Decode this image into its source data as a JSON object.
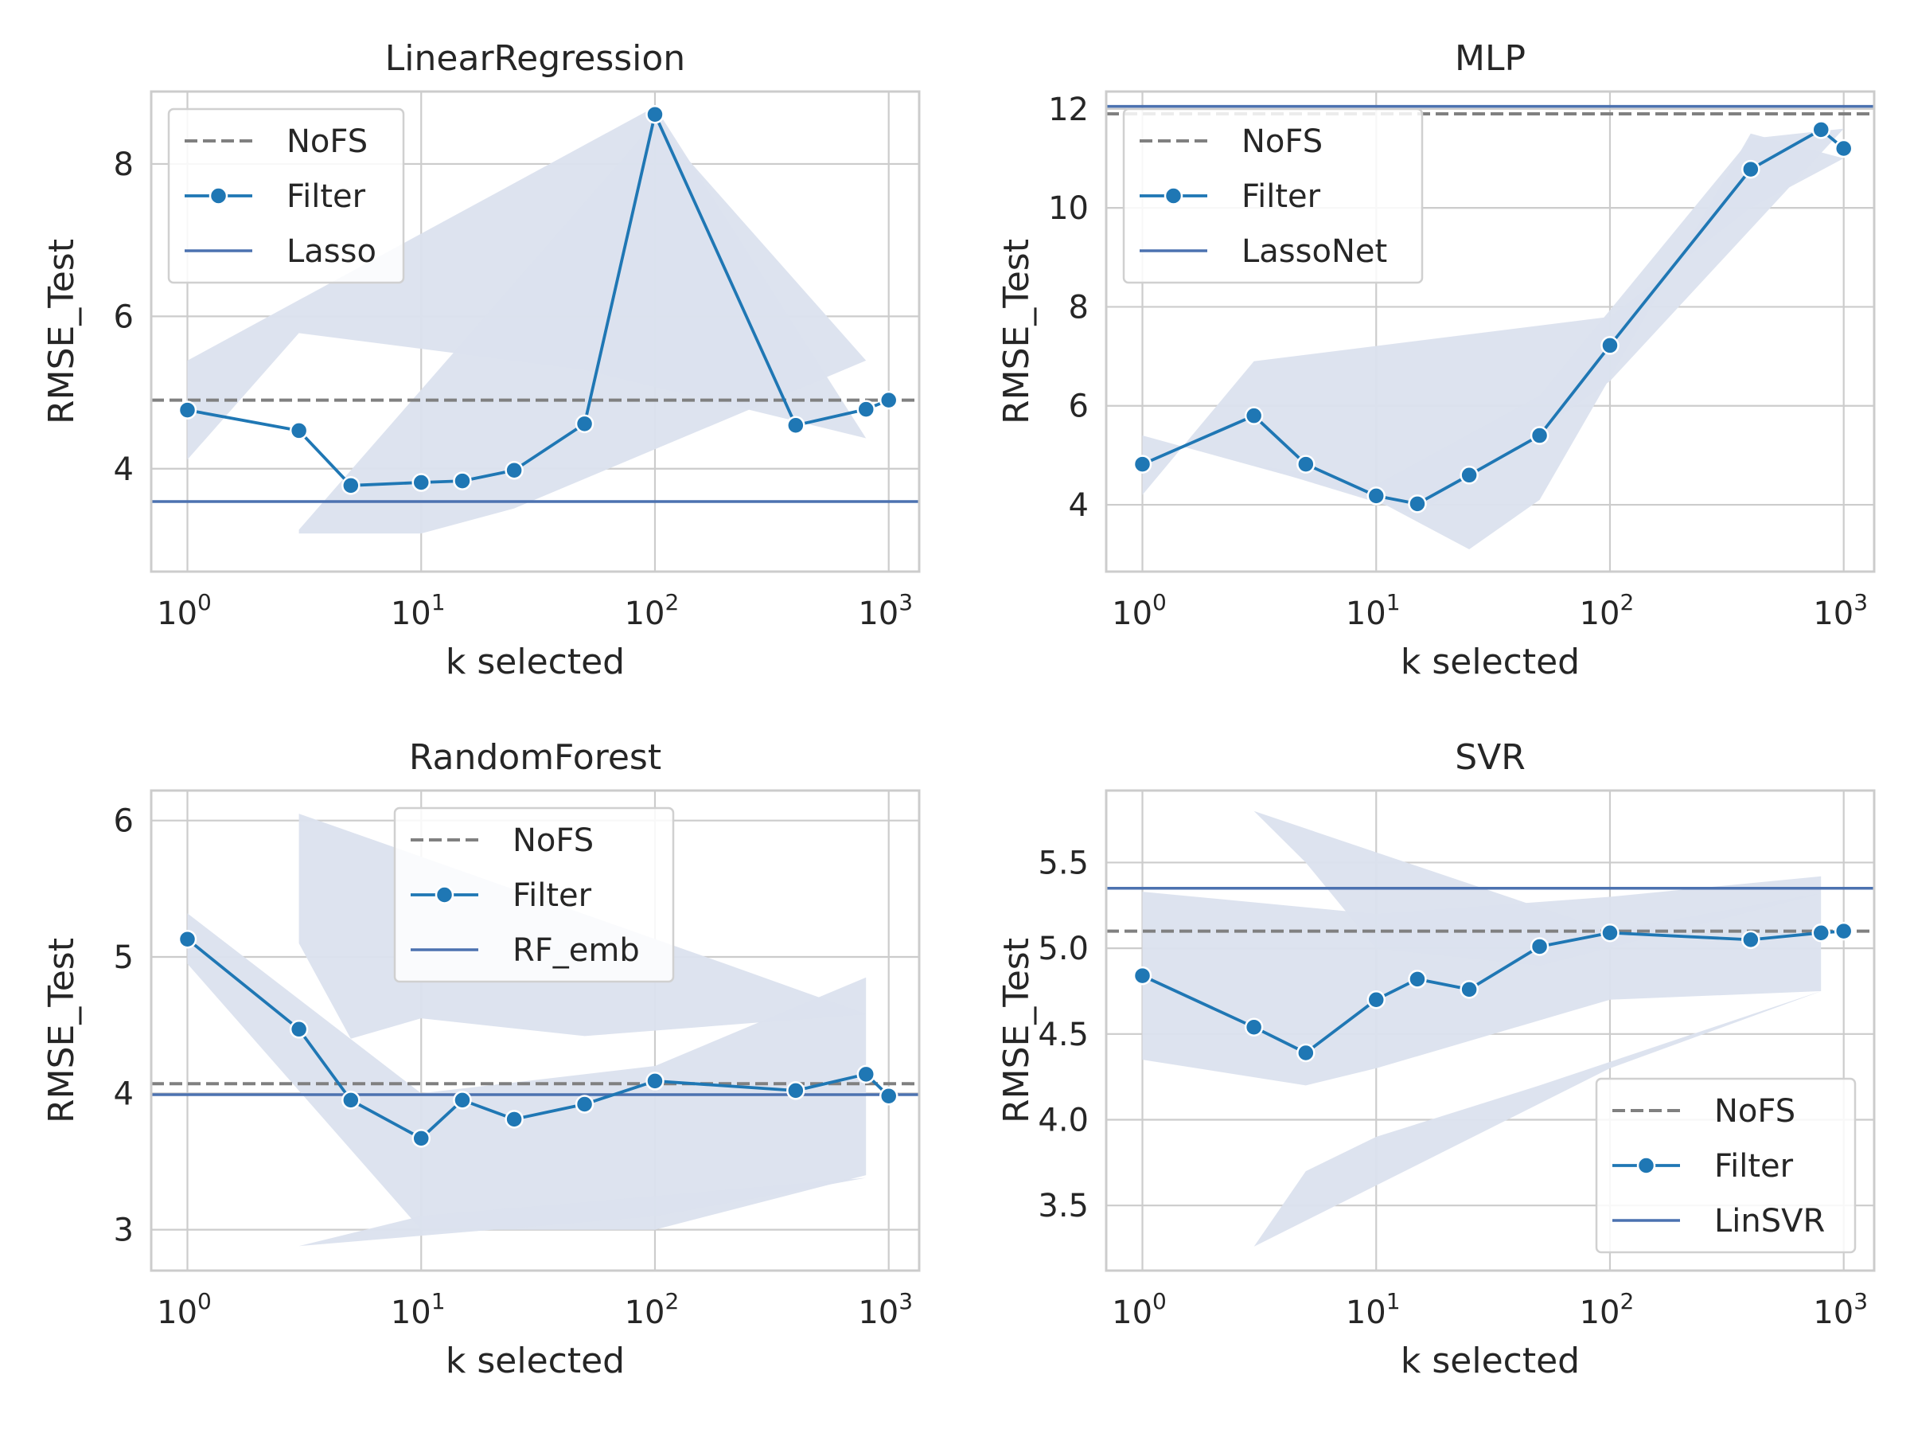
{
  "chart_data": [
    {
      "type": "line",
      "title": "LinearRegression",
      "xlabel": "k selected",
      "ylabel": "RMSE_Test",
      "xscale": "log",
      "xlim": [
        0.7,
        1350
      ],
      "ylim": [
        2.65,
        8.95
      ],
      "xticks": [
        1,
        10,
        100,
        1000
      ],
      "xtick_labels": [
        {
          "base": "10",
          "exp": "0"
        },
        {
          "base": "10",
          "exp": "1"
        },
        {
          "base": "10",
          "exp": "2"
        },
        {
          "base": "10",
          "exp": "3"
        }
      ],
      "yticks": [
        4,
        6,
        8
      ],
      "ytick_labels": [
        "4",
        "6",
        "8"
      ],
      "grid": true,
      "legend_position": "top-left",
      "legend": [
        "NoFS",
        "Filter",
        "Lasso"
      ],
      "colors": {
        "nofs": "#808080",
        "filter": "#1f77b4",
        "baseline": "#4c72b0",
        "band": "#dbe1ee"
      },
      "nofs": 4.9,
      "baseline": 3.57,
      "series": [
        {
          "name": "Filter",
          "x": [
            1,
            3,
            5,
            10,
            15,
            25,
            50,
            100,
            400,
            800,
            1000
          ],
          "y": [
            4.77,
            4.5,
            3.78,
            3.82,
            3.84,
            3.98,
            4.59,
            8.65,
            4.57,
            4.78,
            4.9
          ]
        }
      ],
      "band": [
        [
          [
            1,
            5.42
          ],
          [
            100,
            8.75
          ],
          [
            800,
            4.4
          ],
          [
            50,
            5.3
          ],
          [
            3,
            5.78
          ],
          [
            1,
            4.12
          ]
        ],
        [
          [
            3,
            3.2
          ],
          [
            100,
            8.55
          ],
          [
            800,
            5.42
          ],
          [
            25,
            3.48
          ],
          [
            10,
            3.15
          ],
          [
            3,
            3.15
          ]
        ]
      ]
    },
    {
      "type": "line",
      "title": "MLP",
      "xlabel": "k selected",
      "ylabel": "RMSE_Test",
      "xscale": "log",
      "xlim": [
        0.7,
        1350
      ],
      "ylim": [
        2.65,
        12.35
      ],
      "xticks": [
        1,
        10,
        100,
        1000
      ],
      "xtick_labels": [
        {
          "base": "10",
          "exp": "0"
        },
        {
          "base": "10",
          "exp": "1"
        },
        {
          "base": "10",
          "exp": "2"
        },
        {
          "base": "10",
          "exp": "3"
        }
      ],
      "yticks": [
        4,
        6,
        8,
        10,
        12
      ],
      "ytick_labels": [
        "4",
        "6",
        "8",
        "10",
        "12"
      ],
      "grid": true,
      "legend_position": "top-left",
      "legend": [
        "NoFS",
        "Filter",
        "LassoNet"
      ],
      "colors": {
        "nofs": "#808080",
        "filter": "#1f77b4",
        "baseline": "#4c72b0",
        "band": "#dbe1ee"
      },
      "nofs": 11.9,
      "baseline": 12.05,
      "series": [
        {
          "name": "Filter",
          "x": [
            1,
            3,
            5,
            10,
            15,
            25,
            50,
            100,
            400,
            800,
            1000
          ],
          "y": [
            4.82,
            5.8,
            4.82,
            4.18,
            4.02,
            4.6,
            5.4,
            7.22,
            10.78,
            11.58,
            11.2
          ]
        }
      ],
      "band": [
        [
          [
            1,
            5.4
          ],
          [
            10,
            4.1
          ],
          [
            25,
            3.1
          ],
          [
            50,
            4.1
          ],
          [
            400,
            11.5
          ],
          [
            1000,
            11.0
          ],
          [
            400,
            10.0
          ],
          [
            100,
            7.8
          ],
          [
            3,
            6.9
          ],
          [
            1,
            4.2
          ]
        ],
        [
          [
            3,
            4.8
          ],
          [
            15,
            3.8
          ],
          [
            100,
            6.5
          ],
          [
            1000,
            11.6
          ],
          [
            400,
            11.4
          ],
          [
            50,
            6.2
          ],
          [
            10,
            4.4
          ]
        ]
      ]
    },
    {
      "type": "line",
      "title": "RandomForest",
      "xlabel": "k selected",
      "ylabel": "RMSE_Test",
      "xscale": "log",
      "xlim": [
        0.7,
        1350
      ],
      "ylim": [
        2.7,
        6.22
      ],
      "xticks": [
        1,
        10,
        100,
        1000
      ],
      "xtick_labels": [
        {
          "base": "10",
          "exp": "0"
        },
        {
          "base": "10",
          "exp": "1"
        },
        {
          "base": "10",
          "exp": "2"
        },
        {
          "base": "10",
          "exp": "3"
        }
      ],
      "yticks": [
        3,
        4,
        5,
        6
      ],
      "ytick_labels": [
        "3",
        "4",
        "5",
        "6"
      ],
      "grid": true,
      "legend_position": "top-center",
      "legend": [
        "NoFS",
        "Filter",
        "RF_emb"
      ],
      "colors": {
        "nofs": "#808080",
        "filter": "#1f77b4",
        "baseline": "#4c72b0",
        "band": "#dbe1ee"
      },
      "nofs": 4.07,
      "baseline": 3.99,
      "series": [
        {
          "name": "Filter",
          "x": [
            1,
            3,
            5,
            10,
            15,
            25,
            50,
            100,
            400,
            800,
            1000
          ],
          "y": [
            5.13,
            4.47,
            3.95,
            3.67,
            3.95,
            3.81,
            3.92,
            4.09,
            4.02,
            4.14,
            3.98
          ]
        }
      ],
      "band": [
        [
          [
            1,
            5.32
          ],
          [
            10,
            4.0
          ],
          [
            100,
            4.2
          ],
          [
            800,
            4.85
          ],
          [
            800,
            3.4
          ],
          [
            100,
            3.0
          ],
          [
            10,
            3.0
          ],
          [
            1,
            4.95
          ]
        ],
        [
          [
            3,
            6.05
          ],
          [
            200,
            4.95
          ],
          [
            800,
            4.58
          ],
          [
            50,
            4.42
          ],
          [
            10,
            4.55
          ],
          [
            5,
            4.4
          ],
          [
            3,
            5.1
          ]
        ],
        [
          [
            3,
            2.88
          ],
          [
            100,
            3.1
          ],
          [
            800,
            3.38
          ],
          [
            50,
            3.2
          ],
          [
            10,
            3.1
          ]
        ]
      ]
    },
    {
      "type": "line",
      "title": "SVR",
      "xlabel": "k selected",
      "ylabel": "RMSE_Test",
      "xscale": "log",
      "xlim": [
        0.7,
        1350
      ],
      "ylim": [
        3.12,
        5.92
      ],
      "xticks": [
        1,
        10,
        100,
        1000
      ],
      "xtick_labels": [
        {
          "base": "10",
          "exp": "0"
        },
        {
          "base": "10",
          "exp": "1"
        },
        {
          "base": "10",
          "exp": "2"
        },
        {
          "base": "10",
          "exp": "3"
        }
      ],
      "yticks": [
        3.5,
        4.0,
        4.5,
        5.0,
        5.5
      ],
      "ytick_labels": [
        "3.5",
        "4.0",
        "4.5",
        "5.0",
        "5.5"
      ],
      "grid": true,
      "legend_position": "bottom-right",
      "legend": [
        "NoFS",
        "Filter",
        "LinSVR"
      ],
      "colors": {
        "nofs": "#808080",
        "filter": "#1f77b4",
        "baseline": "#4c72b0",
        "band": "#dbe1ee"
      },
      "nofs": 5.1,
      "baseline": 5.35,
      "series": [
        {
          "name": "Filter",
          "x": [
            1,
            3,
            5,
            10,
            15,
            25,
            50,
            100,
            400,
            800,
            1000
          ],
          "y": [
            4.84,
            4.54,
            4.39,
            4.7,
            4.82,
            4.76,
            5.01,
            5.09,
            5.05,
            5.09,
            5.1
          ]
        }
      ],
      "band": [
        [
          [
            1,
            5.33
          ],
          [
            10,
            5.2
          ],
          [
            100,
            5.3
          ],
          [
            800,
            5.42
          ],
          [
            800,
            4.75
          ],
          [
            100,
            4.7
          ],
          [
            10,
            4.3
          ],
          [
            5,
            4.2
          ],
          [
            1,
            4.35
          ]
        ],
        [
          [
            3,
            5.8
          ],
          [
            100,
            5.1
          ],
          [
            800,
            5.32
          ],
          [
            50,
            4.9
          ],
          [
            10,
            5.0
          ],
          [
            5,
            5.5
          ]
        ],
        [
          [
            3,
            3.26
          ],
          [
            100,
            4.3
          ],
          [
            800,
            4.75
          ],
          [
            50,
            4.2
          ],
          [
            10,
            3.9
          ],
          [
            5,
            3.7
          ]
        ]
      ]
    }
  ]
}
